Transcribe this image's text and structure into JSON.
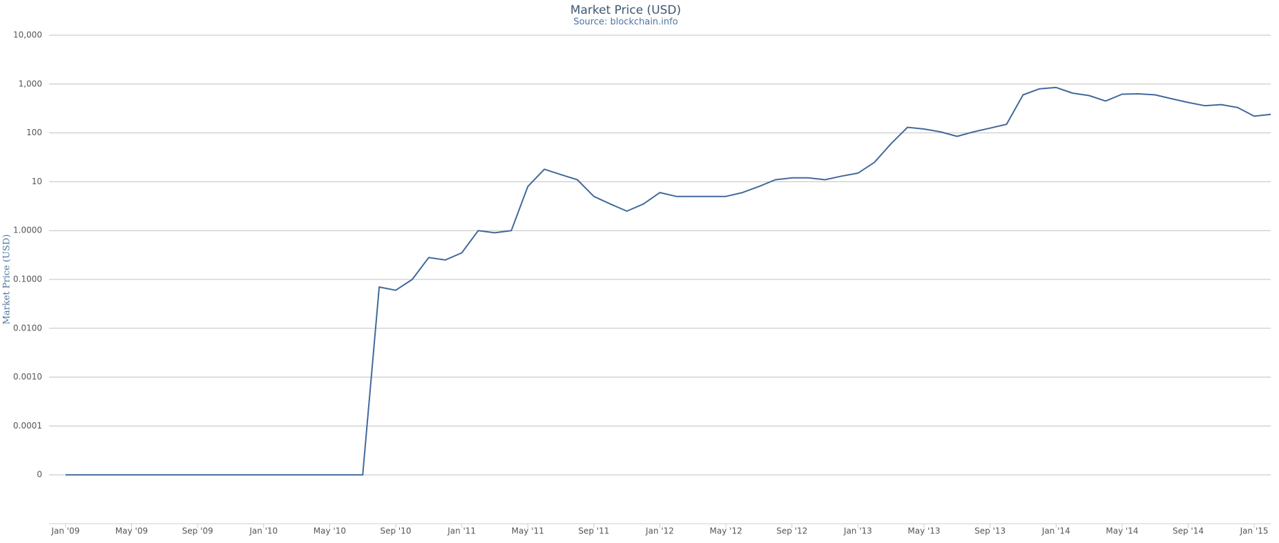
{
  "chart_data": {
    "type": "line",
    "title": "Market Price (USD)",
    "subtitle": "Source: blockchain.info",
    "y_label": "Market Price (USD)",
    "log_scale": true,
    "grid": true,
    "xlim": [
      "2008-12",
      "2015-02"
    ],
    "xticks": [
      {
        "value": "2009-01",
        "label": "Jan '09"
      },
      {
        "value": "2009-05",
        "label": "May '09"
      },
      {
        "value": "2009-09",
        "label": "Sep '09"
      },
      {
        "value": "2010-01",
        "label": "Jan '10"
      },
      {
        "value": "2010-05",
        "label": "May '10"
      },
      {
        "value": "2010-09",
        "label": "Sep '10"
      },
      {
        "value": "2011-01",
        "label": "Jan '11"
      },
      {
        "value": "2011-05",
        "label": "May '11"
      },
      {
        "value": "2011-09",
        "label": "Sep '11"
      },
      {
        "value": "2012-01",
        "label": "Jan '12"
      },
      {
        "value": "2012-05",
        "label": "May '12"
      },
      {
        "value": "2012-09",
        "label": "Sep '12"
      },
      {
        "value": "2013-01",
        "label": "Jan '13"
      },
      {
        "value": "2013-05",
        "label": "May '13"
      },
      {
        "value": "2013-09",
        "label": "Sep '13"
      },
      {
        "value": "2014-01",
        "label": "Jan '14"
      },
      {
        "value": "2014-05",
        "label": "May '14"
      },
      {
        "value": "2014-09",
        "label": "Sep '14"
      },
      {
        "value": "2015-01",
        "label": "Jan '15"
      }
    ],
    "ylim": [
      1e-06,
      10000
    ],
    "yticks": [
      {
        "value": 10000,
        "label": "10,000"
      },
      {
        "value": 1000,
        "label": "1,000"
      },
      100,
      10,
      {
        "value": 1,
        "label": "1.0000"
      },
      {
        "value": 0.1,
        "label": "0.1000"
      },
      {
        "value": 0.01,
        "label": "0.0100"
      },
      {
        "value": 0.001,
        "label": "0.0010"
      },
      {
        "value": 0.0001,
        "label": "0.0001"
      },
      {
        "value": 1e-05,
        "label": "0"
      }
    ],
    "x": [
      "2009-01",
      "2009-02",
      "2009-03",
      "2009-04",
      "2009-05",
      "2009-06",
      "2009-07",
      "2009-08",
      "2009-09",
      "2009-10",
      "2009-11",
      "2009-12",
      "2010-01",
      "2010-02",
      "2010-03",
      "2010-04",
      "2010-05",
      "2010-06",
      "2010-07",
      "2010-08",
      "2010-09",
      "2010-10",
      "2010-11",
      "2010-12",
      "2011-01",
      "2011-02",
      "2011-03",
      "2011-04",
      "2011-05",
      "2011-06",
      "2011-07",
      "2011-08",
      "2011-09",
      "2011-10",
      "2011-11",
      "2011-12",
      "2012-01",
      "2012-02",
      "2012-03",
      "2012-04",
      "2012-05",
      "2012-06",
      "2012-07",
      "2012-08",
      "2012-09",
      "2012-10",
      "2012-11",
      "2012-12",
      "2013-01",
      "2013-02",
      "2013-03",
      "2013-04",
      "2013-05",
      "2013-06",
      "2013-07",
      "2013-08",
      "2013-09",
      "2013-10",
      "2013-11",
      "2013-12",
      "2014-01",
      "2014-02",
      "2014-03",
      "2014-04",
      "2014-05",
      "2014-06",
      "2014-07",
      "2014-08",
      "2014-09",
      "2014-10",
      "2014-11",
      "2014-12",
      "2015-01",
      "2015-02"
    ],
    "series": [
      {
        "name": "Market Price (USD)",
        "color": "#40689a",
        "values": [
          1e-05,
          1e-05,
          1e-05,
          1e-05,
          1e-05,
          1e-05,
          1e-05,
          1e-05,
          1e-05,
          1e-05,
          1e-05,
          1e-05,
          1e-05,
          1e-05,
          1e-05,
          1e-05,
          1e-05,
          1e-05,
          1e-05,
          0.07,
          0.06,
          0.1,
          0.28,
          0.25,
          0.35,
          1.0,
          0.9,
          1.0,
          8,
          18,
          14,
          11,
          5,
          3.5,
          2.5,
          3.5,
          6,
          5,
          5,
          5,
          5,
          6,
          8,
          11,
          12,
          12,
          11,
          13,
          15,
          25,
          60,
          130,
          120,
          105,
          85,
          105,
          125,
          150,
          600,
          800,
          850,
          650,
          580,
          450,
          620,
          630,
          600,
          500,
          420,
          360,
          380,
          330,
          220,
          240
        ]
      }
    ]
  }
}
